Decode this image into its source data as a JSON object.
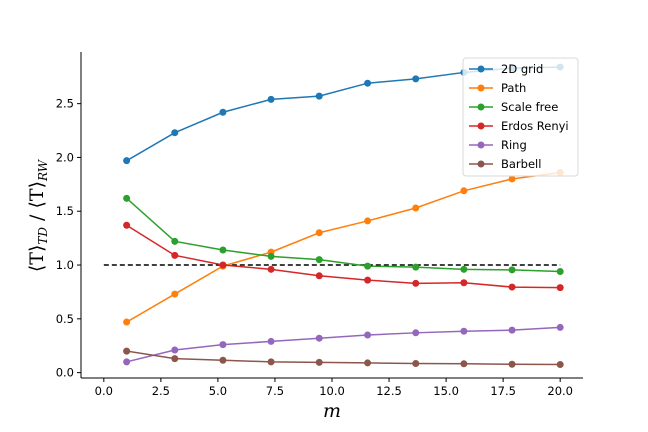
{
  "chart_data": {
    "type": "line",
    "title": "",
    "xlabel": "m",
    "ylabel": "⟨T⟩TD / ⟨T⟩RW",
    "ylabel_parts": {
      "t1": "⟨T⟩",
      "sub1": "TD",
      "sep": " / ",
      "t2": "⟨T⟩",
      "sub2": "RW"
    },
    "xlim": [
      -1.0,
      21.0
    ],
    "ylim": [
      -0.05,
      2.98
    ],
    "xticks": [
      0.0,
      2.5,
      5.0,
      7.5,
      10.0,
      12.5,
      15.0,
      17.5,
      20.0
    ],
    "xtick_labels": [
      "0.0",
      "2.5",
      "5.0",
      "7.5",
      "10.0",
      "12.5",
      "15.0",
      "17.5",
      "20.0"
    ],
    "yticks": [
      0.0,
      0.5,
      1.0,
      1.5,
      2.0,
      2.5
    ],
    "ytick_labels": [
      "0.0",
      "0.5",
      "1.0",
      "1.5",
      "2.0",
      "2.5"
    ],
    "grid": false,
    "legend_position": "top-right",
    "x": [
      1,
      3.11,
      5.22,
      7.33,
      9.44,
      11.56,
      13.67,
      15.78,
      17.89,
      20
    ],
    "series": [
      {
        "name": "2D grid",
        "color": "#1f77b4",
        "values": [
          1.97,
          2.23,
          2.42,
          2.54,
          2.57,
          2.69,
          2.73,
          2.79,
          2.83,
          2.84
        ]
      },
      {
        "name": "Path",
        "color": "#ff7f0e",
        "values": [
          0.47,
          0.73,
          0.99,
          1.12,
          1.3,
          1.41,
          1.53,
          1.69,
          1.8,
          1.86
        ]
      },
      {
        "name": "Scale free",
        "color": "#2ca02c",
        "values": [
          1.62,
          1.22,
          1.14,
          1.08,
          1.05,
          0.99,
          0.98,
          0.96,
          0.955,
          0.94
        ]
      },
      {
        "name": "Erdos Renyi",
        "color": "#d62728",
        "values": [
          1.37,
          1.09,
          1.0,
          0.96,
          0.9,
          0.86,
          0.83,
          0.835,
          0.795,
          0.79
        ]
      },
      {
        "name": "Ring",
        "color": "#9467bd",
        "values": [
          0.1,
          0.21,
          0.26,
          0.29,
          0.32,
          0.35,
          0.37,
          0.385,
          0.395,
          0.42
        ]
      },
      {
        "name": "Barbell",
        "color": "#8c564b",
        "values": [
          0.2,
          0.13,
          0.115,
          0.1,
          0.095,
          0.09,
          0.085,
          0.082,
          0.078,
          0.075
        ]
      }
    ],
    "reference_line": {
      "y": 1.0,
      "x_start": 0,
      "x_end": 20,
      "style": "dashed",
      "color": "#000000"
    }
  }
}
